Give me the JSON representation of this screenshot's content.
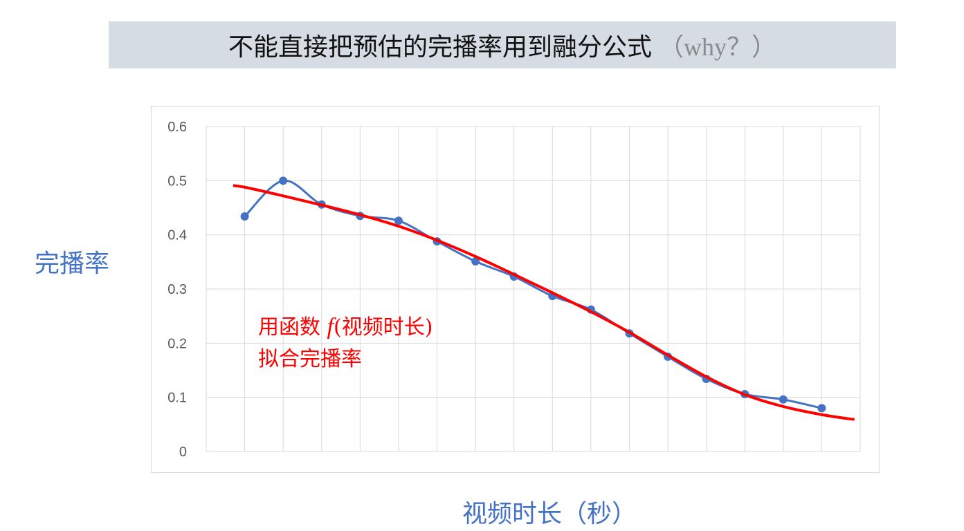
{
  "title": {
    "main": "不能直接把预估的完播率用到融分公式",
    "suffix": "（why？）"
  },
  "colors": {
    "title_bg": "#d6dce4",
    "data_series": "#4472c4",
    "fit_curve": "#ff0000",
    "axis_label": "#4472c4",
    "annotation": "#ff0000"
  },
  "annotation": {
    "line1_prefix": "用函数 ",
    "func": "f",
    "line1_suffix": "(视频时长)",
    "line2": "拟合完播率"
  },
  "chart_data": {
    "type": "line",
    "xlabel": "视频时长（秒）",
    "ylabel": "完播率",
    "ylim": [
      0,
      0.6
    ],
    "xlim": [
      0,
      17
    ],
    "yticks": [
      "0",
      "0.1",
      "0.2",
      "0.3",
      "0.4",
      "0.5",
      "0.6"
    ],
    "grid": true,
    "x": [
      1,
      2,
      3,
      4,
      5,
      6,
      7,
      8,
      9,
      10,
      11,
      12,
      13,
      14,
      15,
      16
    ],
    "series": [
      {
        "kind": "observed",
        "smooth": true,
        "markers": true,
        "values": [
          0.434,
          0.5,
          0.456,
          0.435,
          0.426,
          0.388,
          0.351,
          0.323,
          0.287,
          0.262,
          0.218,
          0.175,
          0.134,
          0.106,
          0.096,
          0.08
        ]
      },
      {
        "kind": "fit",
        "smooth": true,
        "markers": false,
        "x": [
          0.7,
          1,
          2,
          3,
          4,
          5,
          6,
          7,
          8,
          9,
          10,
          11,
          12,
          13,
          14,
          15,
          16,
          16.85
        ],
        "values": [
          0.491,
          0.488,
          0.472,
          0.455,
          0.437,
          0.416,
          0.39,
          0.36,
          0.327,
          0.293,
          0.258,
          0.22,
          0.178,
          0.138,
          0.105,
          0.083,
          0.068,
          0.059
        ]
      }
    ]
  }
}
